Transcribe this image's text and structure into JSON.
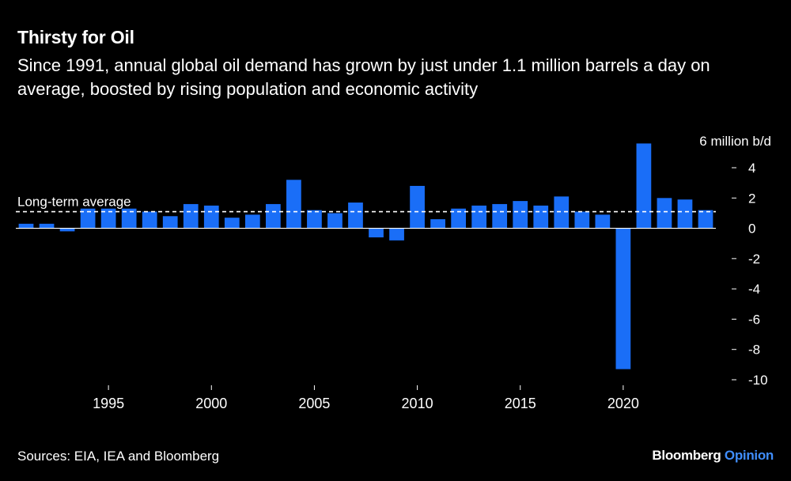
{
  "header": {
    "title": "Thirsty for Oil",
    "subtitle": "Since 1991, annual global oil demand has grown by just under 1.1 million barrels a day on average, boosted by rising population and economic activity"
  },
  "footer": {
    "source": "Sources: EIA, IEA and Bloomberg",
    "brand_main": "Bloomberg",
    "brand_sub": "Opinion"
  },
  "colors": {
    "background": "#000000",
    "bar": "#1a6ef7",
    "text": "#ffffff",
    "brand_accent": "#3f8dfb"
  },
  "chart_data": {
    "type": "bar",
    "title": "Thirsty for Oil",
    "unit_label": "6 million b/d",
    "xlabel": "",
    "ylabel": "million b/d",
    "ylim": [
      -10,
      6
    ],
    "y_ticks": [
      {
        "value": 4,
        "label": "4"
      },
      {
        "value": 2,
        "label": "2"
      },
      {
        "value": 0,
        "label": "0"
      },
      {
        "value": -2,
        "label": "– -2"
      },
      {
        "value": -4,
        "label": "– -4"
      },
      {
        "value": -6,
        "label": "– -6"
      },
      {
        "value": -8,
        "label": "– -8"
      },
      {
        "value": -10,
        "label": "– -10"
      }
    ],
    "x_ticks": [
      {
        "value": 1995,
        "label": "1995"
      },
      {
        "value": 2000,
        "label": "2000"
      },
      {
        "value": 2005,
        "label": "2005"
      },
      {
        "value": 2010,
        "label": "2010"
      },
      {
        "value": 2015,
        "label": "2015"
      },
      {
        "value": 2020,
        "label": "2020"
      }
    ],
    "years": [
      1991,
      1992,
      1993,
      1994,
      1995,
      1996,
      1997,
      1998,
      1999,
      2000,
      2001,
      2002,
      2003,
      2004,
      2005,
      2006,
      2007,
      2008,
      2009,
      2010,
      2011,
      2012,
      2013,
      2014,
      2015,
      2016,
      2017,
      2018,
      2019,
      2020,
      2021,
      2022,
      2023,
      2024
    ],
    "values": [
      0.3,
      0.3,
      -0.2,
      1.3,
      1.3,
      1.3,
      1.1,
      0.8,
      1.6,
      1.5,
      0.7,
      0.9,
      1.6,
      3.2,
      1.2,
      1.0,
      1.7,
      -0.6,
      -0.8,
      2.8,
      0.6,
      1.3,
      1.5,
      1.6,
      1.8,
      1.5,
      2.1,
      1.1,
      0.9,
      -9.3,
      5.6,
      2.0,
      1.9,
      1.2
    ],
    "reference_line": {
      "label": "Long-term average",
      "value": 1.1,
      "style": "dashed"
    },
    "grid": false,
    "axis_side": "right"
  }
}
